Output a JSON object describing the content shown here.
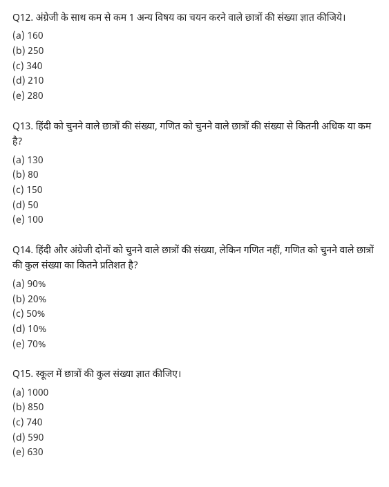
{
  "questions": [
    {
      "number": "Q12.",
      "text": "अंग्रेजी के साथ कम से कम 1 अन्य विषय का चयन करने वाले छात्रों की संख्या ज्ञात कीजिये।",
      "options": [
        "(a) 160",
        "(b) 250",
        "(c) 340",
        "(d) 210",
        "(e) 280"
      ]
    },
    {
      "number": "Q13.",
      "text": "हिंदी को चुनने वाले छात्रों की संख्या, गणित को चुनने वाले छात्रों की संख्या से कितनी अधिक या कम है?",
      "options": [
        "(a) 130",
        "(b) 80",
        "(c) 150",
        "(d) 50",
        "(e) 100"
      ]
    },
    {
      "number": "Q14.",
      "text": "हिंदी और अंग्रेजी दोनों को चुनने वाले छात्रों की संख्या, लेकिन गणित नहीं, गणित को चुनने वाले छात्रों की कुल संख्या का कितने प्रतिशत है?",
      "options": [
        "(a) 90%",
        "(b) 20%",
        "(c) 50%",
        "(d) 10%",
        "(e) 70%"
      ]
    },
    {
      "number": "Q15.",
      "text": "स्कूल में छात्रों की कुल संख्या ज्ञात कीजिए।",
      "options": [
        "(a) 1000",
        "(b) 850",
        "(c) 740",
        "(d) 590",
        "(e) 630"
      ]
    }
  ]
}
